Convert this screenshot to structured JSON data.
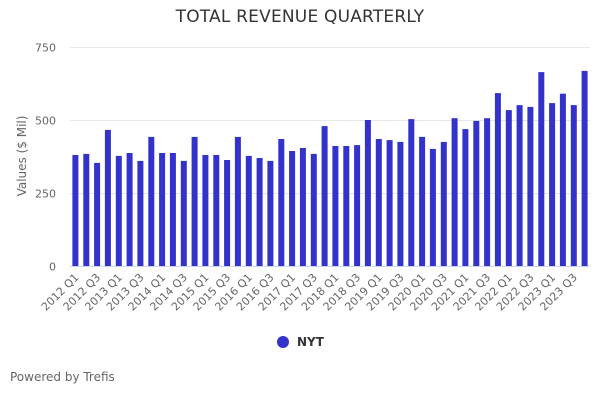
{
  "chart_data": {
    "type": "bar",
    "title": "TOTAL REVENUE QUARTERLY",
    "xlabel": "",
    "ylabel": "Values ($ Mil)",
    "ylim": [
      0,
      750
    ],
    "yticks": [
      0,
      250,
      500,
      750
    ],
    "grid": true,
    "legend_position": "bottom-center",
    "categories": [
      "2012 Q1",
      "2012 Q2",
      "2012 Q3",
      "2012 Q4",
      "2013 Q1",
      "2013 Q2",
      "2013 Q3",
      "2013 Q4",
      "2014 Q1",
      "2014 Q2",
      "2014 Q3",
      "2014 Q4",
      "2015 Q1",
      "2015 Q2",
      "2015 Q3",
      "2015 Q4",
      "2016 Q1",
      "2016 Q2",
      "2016 Q3",
      "2016 Q4",
      "2017 Q1",
      "2017 Q2",
      "2017 Q3",
      "2017 Q4",
      "2018 Q1",
      "2018 Q2",
      "2018 Q3",
      "2018 Q4",
      "2019 Q1",
      "2019 Q2",
      "2019 Q3",
      "2019 Q4",
      "2020 Q1",
      "2020 Q2",
      "2020 Q3",
      "2020 Q4",
      "2021 Q1",
      "2021 Q2",
      "2021 Q3",
      "2021 Q4",
      "2022 Q1",
      "2022 Q2",
      "2022 Q3",
      "2022 Q4",
      "2023 Q1",
      "2023 Q2",
      "2023 Q3",
      "2023 Q4"
    ],
    "tick_labels_shown": [
      "2012 Q1",
      "2012 Q3",
      "2013 Q1",
      "2013 Q3",
      "2014 Q1",
      "2014 Q3",
      "2015 Q1",
      "2015 Q3",
      "2016 Q1",
      "2016 Q3",
      "2017 Q1",
      "2017 Q3",
      "2018 Q1",
      "2018 Q3",
      "2019 Q1",
      "2019 Q3",
      "2020 Q1",
      "2020 Q3",
      "2021 Q1",
      "2021 Q3",
      "2022 Q1",
      "2022 Q3",
      "2023 Q1",
      "2023 Q3"
    ],
    "series": [
      {
        "name": "NYT",
        "color": "#3333cc",
        "values": [
          380,
          384,
          353,
          466,
          377,
          387,
          360,
          442,
          387,
          387,
          360,
          442,
          380,
          380,
          363,
          442,
          377,
          370,
          360,
          435,
          394,
          404,
          384,
          479,
          411,
          411,
          414,
          500,
          435,
          431,
          425,
          503,
          442,
          401,
          425,
          506,
          469,
          497,
          506,
          592,
          534,
          551,
          545,
          664,
          558,
          590,
          551,
          668
        ]
      }
    ]
  },
  "footer": {
    "text": "Powered by Trefis"
  }
}
